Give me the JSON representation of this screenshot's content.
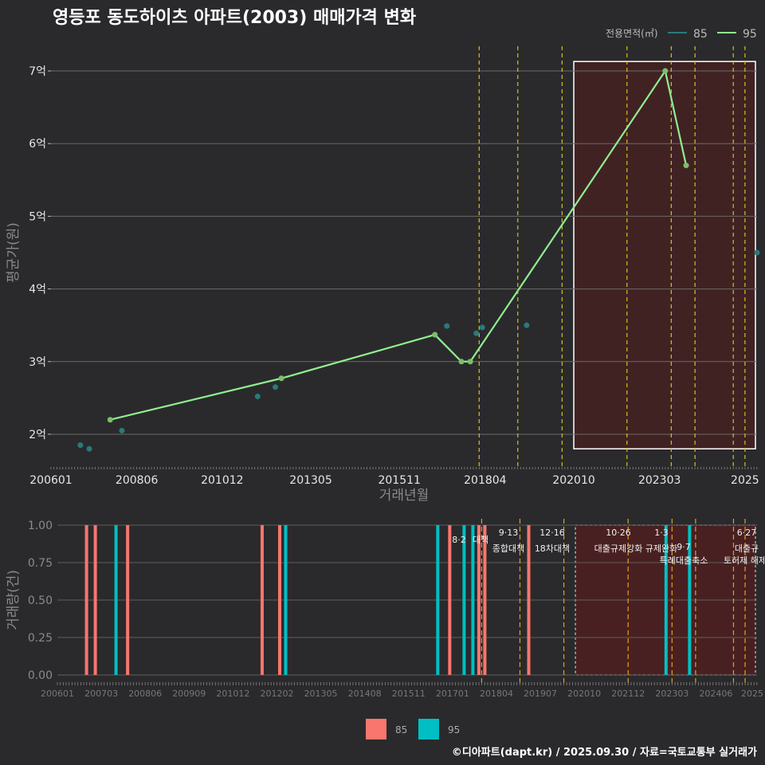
{
  "title": "영등포 동도하이츠 아파트(2003) 매매가격 변화",
  "footer": "©디아파트(dapt.kr) / 2025.09.30 / 자료=국토교통부 실거래가",
  "colors": {
    "bg": "#2a2a2c",
    "s85": "#2a7a7a",
    "s95": "#90ee90",
    "bar85": "#f8766d",
    "bar95": "#00bfc4",
    "policy": "#d4c020"
  },
  "chart_data": [
    {
      "type": "line",
      "title": "영등포 동도하이츠 아파트(2003) 매매가격 변화",
      "xlabel": "거래년월",
      "ylabel": "평균가(원)",
      "xlim": [
        2006.0,
        2025.92
      ],
      "ylim": [
        1.55,
        7.45
      ],
      "x_ticks": [
        2006.0,
        2008.42,
        2010.83,
        2013.33,
        2015.83,
        2018.25,
        2020.75,
        2023.17,
        2025.58
      ],
      "x_tick_labels": [
        "200601",
        "200806",
        "201012",
        "201305",
        "201511",
        "201804",
        "202010",
        "202303",
        "2025"
      ],
      "y_ticks": [
        2,
        3,
        4,
        5,
        6,
        7
      ],
      "y_tick_labels": [
        "2억",
        "3억",
        "4억",
        "5억",
        "6억",
        "7억"
      ],
      "legend_title": "전용면적(㎡)",
      "legend": [
        "85",
        "95"
      ],
      "series": [
        {
          "name": "85",
          "mode": "points",
          "x": [
            2006.83,
            2007.08,
            2008.0,
            2011.83,
            2012.33,
            2017.17,
            2018.0,
            2018.17,
            2019.42,
            2025.92
          ],
          "y": [
            1.85,
            1.8,
            2.05,
            2.52,
            2.65,
            3.49,
            3.39,
            3.47,
            3.5,
            4.5
          ]
        },
        {
          "name": "95",
          "mode": "line",
          "x": [
            2007.67,
            2012.5,
            2016.83,
            2017.58,
            2017.83,
            2023.33,
            2023.92
          ],
          "y": [
            2.2,
            2.77,
            3.37,
            3.0,
            3.0,
            7.0,
            5.7
          ]
        }
      ],
      "policy_lines": [
        2018.08,
        2019.17,
        2020.42,
        2022.25,
        2023.5,
        2024.17,
        2025.25,
        2025.58
      ],
      "highlight": {
        "x": [
          2020.75,
          2025.92
        ],
        "y": [
          1.8,
          7.13
        ]
      }
    },
    {
      "type": "bar",
      "xlabel": "",
      "ylabel": "거래량(건)",
      "xlim": [
        2006.0,
        2025.92
      ],
      "ylim": [
        0,
        1.0
      ],
      "y_ticks": [
        0.0,
        0.25,
        0.5,
        0.75,
        1.0
      ],
      "y_tick_labels": [
        "0.00",
        "0.25",
        "0.50",
        "0.75",
        "1.00"
      ],
      "x_tick_labels": [
        "200601",
        "200703",
        "200806",
        "200909",
        "201012",
        "201202",
        "201305",
        "201408",
        "201511",
        "201701",
        "201804",
        "201907",
        "202010",
        "202112",
        "202303",
        "202406",
        "2025"
      ],
      "legend": [
        "85",
        "95"
      ],
      "series": [
        {
          "name": "85",
          "x": [
            2006.83,
            2007.08,
            2008.0,
            2011.83,
            2012.33,
            2017.17,
            2018.0,
            2018.17,
            2019.42
          ],
          "values": [
            1,
            1,
            1,
            1,
            1,
            1,
            1,
            1,
            1
          ]
        },
        {
          "name": "95",
          "x": [
            2007.67,
            2012.5,
            2016.83,
            2017.58,
            2017.83,
            2023.33,
            2024.0
          ],
          "values": [
            1,
            1,
            1,
            1,
            1,
            1,
            1
          ]
        }
      ],
      "policy_lines": [
        2018.08,
        2019.17,
        2020.42,
        2022.25,
        2023.5,
        2024.17,
        2025.25,
        2025.58
      ],
      "annotations": [
        {
          "date": "8·2",
          "label": "대책"
        },
        {
          "date": "9·13",
          "label": "종합대책"
        },
        {
          "date": "12·16",
          "label": "18차대책"
        },
        {
          "date": "10·26",
          "label": "대출규제강화"
        },
        {
          "date": "1·3",
          "label": "규제완화"
        },
        {
          "date": "9·7",
          "label": "특례대출축소"
        },
        {
          "date": "",
          "label": "토허제 해제"
        },
        {
          "date": "6·27",
          "label": "대출규"
        }
      ]
    }
  ]
}
